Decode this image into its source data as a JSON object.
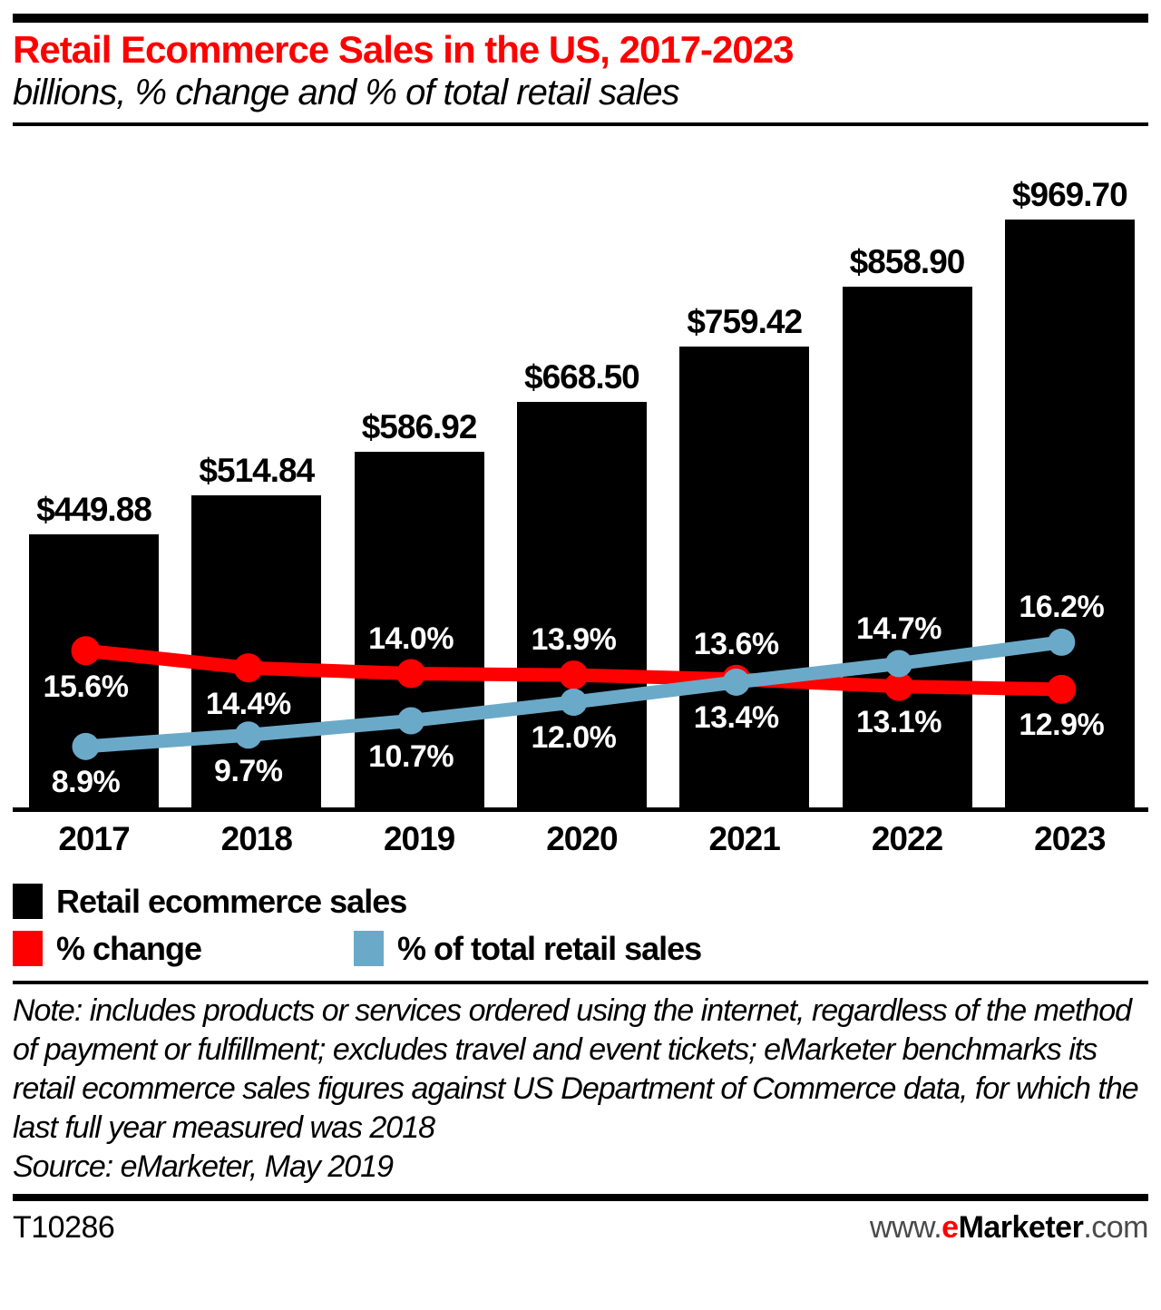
{
  "header": {
    "title": "Retail Ecommerce Sales in the US, 2017-2023",
    "subtitle": "billions, % change and % of total retail sales"
  },
  "chart_data": {
    "type": "combo-bar-line",
    "title": "Retail Ecommerce Sales in the US, 2017-2023",
    "subtitle": "billions, % change and % of total retail sales",
    "categories": [
      "2017",
      "2018",
      "2019",
      "2020",
      "2021",
      "2022",
      "2023"
    ],
    "series": [
      {
        "name": "Retail ecommerce sales",
        "type": "bar",
        "color": "#000000",
        "unit": "billions of $",
        "values": [
          449.88,
          514.84,
          586.92,
          668.5,
          759.42,
          858.9,
          969.7
        ],
        "labels": [
          "$449.88",
          "$514.84",
          "$586.92",
          "$668.50",
          "$759.42",
          "$858.90",
          "$969.70"
        ]
      },
      {
        "name": "% change",
        "type": "line",
        "color": "#ff0000",
        "unit": "%",
        "values": [
          15.6,
          14.4,
          14.0,
          13.9,
          13.6,
          13.1,
          12.9
        ],
        "labels": [
          "15.6%",
          "14.4%",
          "14.0%",
          "13.9%",
          "13.6%",
          "13.1%",
          "12.9%"
        ],
        "label_side": [
          "below",
          "below",
          "above",
          "above",
          "above",
          "below",
          "below"
        ]
      },
      {
        "name": "% of total retail sales",
        "type": "line",
        "color": "#6ba9c9",
        "unit": "%",
        "values": [
          8.9,
          9.7,
          10.7,
          12.0,
          13.4,
          14.7,
          16.2
        ],
        "labels": [
          "8.9%",
          "9.7%",
          "10.7%",
          "12.0%",
          "13.4%",
          "14.7%",
          "16.2%"
        ],
        "label_side": [
          "below",
          "below",
          "below",
          "below",
          "below",
          "above",
          "above"
        ]
      }
    ],
    "value_axis": {
      "min": 0,
      "max": 1120,
      "visible": false
    },
    "percent_axis": {
      "visible": false
    },
    "grid": false,
    "legend_position": "bottom-left"
  },
  "note": {
    "text": "Note: includes products or services ordered using the internet, regardless of the method of payment or fulfillment; excludes travel and event tickets; eMarketer benchmarks its retail ecommerce sales figures against US Department of Commerce data, for which the last full year measured was 2018",
    "source": "Source: eMarketer, May 2019"
  },
  "footer": {
    "code": "T10286",
    "site_prefix": "www.",
    "site_brand_e": "e",
    "site_brand_rest": "Marketer",
    "site_suffix": ".com"
  }
}
